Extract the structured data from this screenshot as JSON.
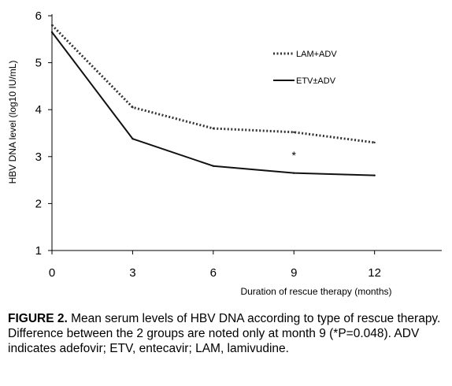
{
  "chart_data": {
    "type": "line",
    "x": [
      0,
      3,
      6,
      9,
      12
    ],
    "series": [
      {
        "name": "LAM+ADV",
        "values": [
          5.8,
          4.05,
          3.6,
          3.52,
          3.3
        ],
        "style": "dotted"
      },
      {
        "name": "ETV±ADV",
        "values": [
          5.65,
          3.38,
          2.8,
          2.65,
          2.6
        ],
        "style": "solid"
      }
    ],
    "xlabel": "Duration of rescue therapy (months)",
    "ylabel": "HBV DNA level (log10 IU/mL)",
    "xticks": [
      "0",
      "3",
      "6",
      "9",
      "12"
    ],
    "yticks": [
      "1",
      "2",
      "3",
      "4",
      "5",
      "6"
    ],
    "xlim": [
      0,
      14.5
    ],
    "ylim": [
      1,
      6
    ],
    "annotations": [
      {
        "text": "*",
        "x": 9,
        "y": 3.05
      }
    ],
    "legend_position": "top-right",
    "grid": false
  },
  "caption": {
    "label": "FIGURE 2.",
    "text": " Mean serum levels of HBV DNA according to type of rescue therapy. Difference between the 2 groups are noted only at month 9 (*P=0.048). ADV indicates adefovir; ETV, entecavir; LAM, lamivudine."
  }
}
